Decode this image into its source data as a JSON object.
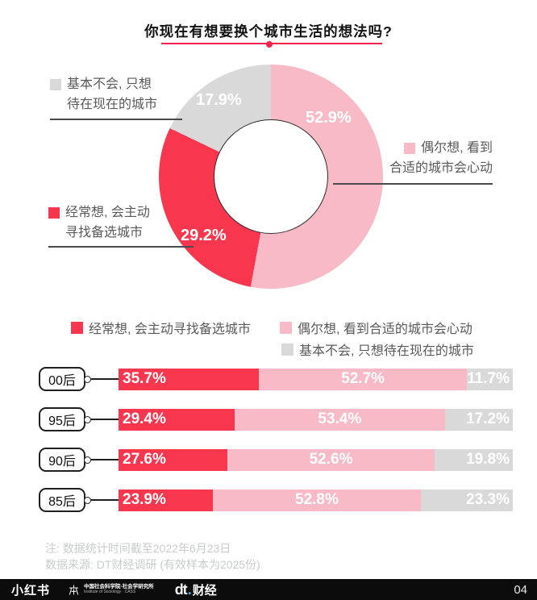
{
  "title": {
    "text": "你现在有想要换个城市生活的想法吗?"
  },
  "colors": {
    "red": "#F8374F",
    "pink": "#F8BAC7",
    "gray": "#D9D9D9",
    "title_red": "#F0244A",
    "callout_line": "#4A4A4A",
    "label_text": "#595959",
    "note_text": "#C9CBCB",
    "footer_bg": "#0C0C0C",
    "dt_dot_blue": "#3FA9F5"
  },
  "chart_data": [
    {
      "type": "pie",
      "title": "你现在有想要换个城市生活的想法吗?",
      "labels": [
        "偶尔想, 看到合适的城市会心动",
        "经常想, 会主动寻找备选城市",
        "基本不会, 只想待在现在的城市"
      ],
      "values": [
        52.9,
        29.2,
        17.9
      ],
      "colors": [
        "#F8BAC7",
        "#F8374F",
        "#D9D9D9"
      ],
      "donut": true,
      "start_angle_deg": 0,
      "direction": "clockwise"
    },
    {
      "type": "bar",
      "subtype": "stacked-horizontal",
      "categories": [
        "00后",
        "95后",
        "90后",
        "85后"
      ],
      "series": [
        {
          "name": "经常想, 会主动寻找备选城市",
          "color": "#F8374F",
          "values": [
            35.7,
            29.4,
            27.6,
            23.9
          ]
        },
        {
          "name": "偶尔想, 看到合适的城市会心动",
          "color": "#F8BAC7",
          "values": [
            52.7,
            53.4,
            52.6,
            52.8
          ]
        },
        {
          "name": "基本不会, 只想待在现在的城市",
          "color": "#D9D9D9",
          "values": [
            11.7,
            17.2,
            19.8,
            23.3
          ]
        }
      ],
      "xlim": [
        0,
        100
      ],
      "unit": "%"
    }
  ],
  "donut_labels": {
    "pink": "52.9%",
    "red": "29.2%",
    "gray": "17.9%"
  },
  "callouts": {
    "gray": {
      "line1": "基本不会, 只想",
      "line2": "待在现在的城市"
    },
    "red": {
      "line1": "经常想, 会主动",
      "line2": "寻找备选城市"
    },
    "pink": {
      "line1": "偶尔想, 看到",
      "line2": "合适的城市会心动"
    }
  },
  "legend": {
    "row1": [
      {
        "key": "red",
        "label": "经常想, 会主动寻找备选城市"
      },
      {
        "key": "pink",
        "label": "偶尔想, 看到合适的城市会心动"
      }
    ],
    "row2": [
      {
        "key": "gray",
        "label": "基本不会, 只想待在现在的城市"
      }
    ]
  },
  "bars": {
    "rows": [
      {
        "label": "00后",
        "segs": [
          {
            "v": 35.7,
            "t": "35.7%"
          },
          {
            "v": 52.7,
            "t": "52.7%"
          },
          {
            "v": 11.7,
            "t": "11.7%"
          }
        ]
      },
      {
        "label": "95后",
        "segs": [
          {
            "v": 29.4,
            "t": "29.4%"
          },
          {
            "v": 53.4,
            "t": "53.4%"
          },
          {
            "v": 17.2,
            "t": "17.2%"
          }
        ]
      },
      {
        "label": "90后",
        "segs": [
          {
            "v": 27.6,
            "t": "27.6%"
          },
          {
            "v": 52.6,
            "t": "52.6%"
          },
          {
            "v": 19.8,
            "t": "19.8%"
          }
        ]
      },
      {
        "label": "85后",
        "segs": [
          {
            "v": 23.9,
            "t": "23.9%"
          },
          {
            "v": 52.8,
            "t": "52.8%"
          },
          {
            "v": 23.3,
            "t": "23.3%"
          }
        ]
      }
    ]
  },
  "notes": {
    "line1": "注: 数据统计时间截至2022年6月23日",
    "line2": "数据来源: DT财经调研 (有效样本为2025份)"
  },
  "footer": {
    "xiaohongshu": "小红书",
    "cass_cn": "中国社会科学院·社会学研究所",
    "cass_en": "Institute of Sociology · CASS",
    "dt_main": "dt",
    "dt_dot": ".",
    "dt_suffix": "财经",
    "page": "04"
  }
}
